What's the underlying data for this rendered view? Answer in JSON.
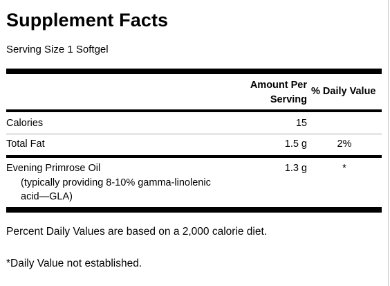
{
  "title": "Supplement Facts",
  "serving_size": "Serving Size 1 Softgel",
  "header": {
    "amount_per_line1": "Amount Per",
    "amount_per_line2": "Serving",
    "daily_value": "% Daily Value"
  },
  "rows": [
    {
      "name": "Calories",
      "amount": "15",
      "dv": ""
    },
    {
      "name": "Total Fat",
      "amount": "1.5 g",
      "dv": "2%"
    },
    {
      "name": "Evening Primrose Oil",
      "sub_line1": "(typically providing 8-10% gamma-linolenic",
      "sub_line2": "acid—GLA)",
      "amount": "1.3 g",
      "dv": "*"
    }
  ],
  "footnotes": {
    "percent_dv": "Percent Daily Values are based on a 2,000 calorie diet.",
    "not_established": "*Daily Value not established."
  }
}
